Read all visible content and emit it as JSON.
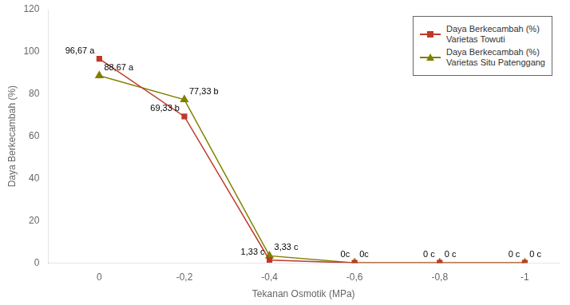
{
  "chart_data": {
    "type": "line",
    "x": [
      0,
      -0.2,
      -0.4,
      -0.6,
      -0.8,
      -1.0
    ],
    "series": [
      {
        "name": "Daya Berkecambah (%)\nVarietas Towuti",
        "color": "#c0392b",
        "marker": "square",
        "line_style": "solid",
        "values": [
          96.67,
          69.33,
          1.33,
          0.0,
          0.0,
          0.0
        ],
        "value_labels": [
          "96,67 a",
          "69,33 b",
          "1,33 c",
          "0c",
          "0 c",
          "0 c"
        ]
      },
      {
        "name": "Daya Berkecambah (%)\nVarietas Situ Patenggang",
        "color": "#808000",
        "marker": "triangle",
        "line_style": "solid",
        "values": [
          88.67,
          77.33,
          3.33,
          0.0,
          0.0,
          0.0
        ],
        "value_labels": [
          "88,67 a",
          "77,33 b",
          "3,33 c",
          "0c",
          "0 c",
          "0 c"
        ]
      }
    ],
    "x_label": "Tekanan Osmotik (MPa)",
    "y_label": "Daya Berkecambah (%)",
    "xlim": [
      0.12,
      -1.08
    ],
    "xticks": [
      0,
      {
        "value": -0.2,
        "label": "-0,2"
      },
      {
        "value": -0.4,
        "label": "-0,4"
      },
      {
        "value": -0.6,
        "label": "-0,6"
      },
      {
        "value": -0.8,
        "label": "-0,8"
      },
      -1
    ],
    "ylim": [
      0,
      120
    ],
    "yticks": [
      0,
      20,
      40,
      60,
      80,
      100,
      120
    ],
    "grid": false,
    "legend": "upper right",
    "data_labels": true
  }
}
